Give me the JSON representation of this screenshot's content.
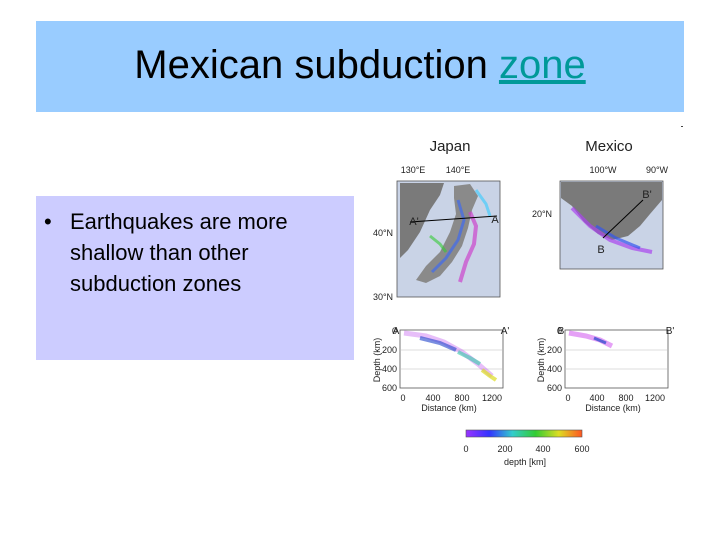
{
  "slide": {
    "title_main": "Mexican subduction ",
    "title_highlight": "zone",
    "bullet": "Earthquakes are more shallow than other subduction zones"
  },
  "colors": {
    "title_bg": "#99ccff",
    "bullet_bg": "#ccccff",
    "highlight": "#009999"
  },
  "figure": {
    "japan": {
      "title": "Japan",
      "lon": [
        "130°E",
        "140°E"
      ],
      "lat": [
        "40°N",
        "30°N"
      ],
      "a": "A",
      "a_prime": "A'"
    },
    "mexico": {
      "title": "Mexico",
      "lon": [
        "100°W",
        "90°W"
      ],
      "lat": [
        "20°N"
      ],
      "b": "B",
      "b_prime": "B'"
    },
    "section_a": {
      "a": "A",
      "a_prime": "A'",
      "y_ticks": [
        "0",
        "200",
        "400",
        "600"
      ],
      "x_ticks": [
        "0",
        "400",
        "800",
        "1200"
      ],
      "ylabel": "Depth (km)",
      "xlabel": "Distance (km)"
    },
    "section_b": {
      "b": "B",
      "b_prime": "B'",
      "y_ticks": [
        "0",
        "200",
        "400",
        "600"
      ],
      "x_ticks": [
        "0",
        "400",
        "800",
        "1200"
      ],
      "ylabel": "Depth (km)",
      "xlabel": "Distance (km)"
    },
    "colorbar": {
      "ticks": [
        "0",
        "200",
        "400",
        "600"
      ],
      "label": "depth [km]"
    }
  }
}
